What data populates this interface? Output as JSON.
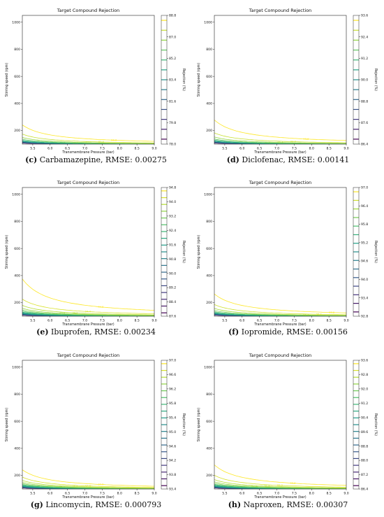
{
  "panel_title": "Target Compound Rejection",
  "xlabel": "Transmembrane Pressure (bar)",
  "ylabel": "Stirring speed (rpm)",
  "colorbar_label": "Rejection (%)",
  "x_ticks": [
    "5.5",
    "6.0",
    "6.5",
    "7.0",
    "7.5",
    "8.0",
    "8.5",
    "9.0"
  ],
  "y_ticks": [
    "200",
    "400",
    "600",
    "800",
    "1000"
  ],
  "colormap": "viridis",
  "colormap_stops": [
    "#440154",
    "#46327e",
    "#365c8d",
    "#277f8e",
    "#1fa187",
    "#4ac16d",
    "#a0da39",
    "#fde725"
  ],
  "chart_data": [
    {
      "type": "contour",
      "letter": "(c)",
      "caption": "Carbamazepine, RMSE: 0.00275",
      "title": "Target Compound Rejection",
      "xlabel": "Transmembrane Pressure (bar)",
      "ylabel": "Stirring speed (rpm)",
      "xlim": [
        5.2,
        9.0
      ],
      "ylim": [
        100,
        1050
      ],
      "colorbar_ticks": [
        78.0,
        79.8,
        81.6,
        83.4,
        85.2,
        87.0,
        88.8
      ],
      "level_range": [
        78.0,
        89.7
      ],
      "levels": [
        78.0,
        78.9,
        79.8,
        80.7,
        81.6,
        82.5,
        83.4,
        84.3,
        85.2,
        86.1,
        87.0,
        87.9,
        88.8
      ]
    },
    {
      "type": "contour",
      "letter": "(d)",
      "caption": "Diclofenac, RMSE: 0.00141",
      "title": "Target Compound Rejection",
      "xlabel": "Transmembrane Pressure (bar)",
      "ylabel": "Stirring speed (rpm)",
      "xlim": [
        5.2,
        9.0
      ],
      "ylim": [
        100,
        1050
      ],
      "colorbar_ticks": [
        86.4,
        87.6,
        88.8,
        90.0,
        91.2,
        92.4,
        93.6
      ],
      "level_range": [
        86.4,
        94.0
      ],
      "levels": [
        86.4,
        87.0,
        87.6,
        88.2,
        88.8,
        89.4,
        90.0,
        90.6,
        91.2,
        91.8,
        92.4,
        93.0,
        93.6
      ]
    },
    {
      "type": "contour",
      "letter": "(e)",
      "caption": "Ibuprofen, RMSE: 0.00234",
      "title": "Target Compound Rejection",
      "xlabel": "Transmembrane Pressure (bar)",
      "ylabel": "Stirring speed (rpm)",
      "xlim": [
        5.2,
        9.0
      ],
      "ylim": [
        100,
        1050
      ],
      "colorbar_ticks": [
        87.6,
        88.4,
        89.2,
        90.0,
        90.8,
        91.6,
        92.4,
        93.2,
        94.0,
        94.8
      ],
      "level_range": [
        87.6,
        95.0
      ],
      "levels": [
        87.6,
        88.0,
        88.4,
        88.8,
        89.2,
        89.6,
        90.0,
        90.4,
        90.8,
        91.2,
        91.6,
        92.0,
        92.4,
        92.8,
        93.2,
        93.6,
        94.0,
        94.4,
        94.8
      ]
    },
    {
      "type": "contour",
      "letter": "(f)",
      "caption": "Iopromide, RMSE: 0.00156",
      "title": "Target Compound Rejection",
      "xlabel": "Transmembrane Pressure (bar)",
      "ylabel": "Stirring speed (rpm)",
      "xlim": [
        5.2,
        9.0
      ],
      "ylim": [
        100,
        1050
      ],
      "colorbar_ticks": [
        92.8,
        93.4,
        94.0,
        94.6,
        95.2,
        95.8,
        96.4,
        97.0
      ],
      "level_range": [
        92.8,
        97.2
      ],
      "levels": [
        92.8,
        93.1,
        93.4,
        93.7,
        94.0,
        94.3,
        94.6,
        94.9,
        95.2,
        95.5,
        95.8,
        96.1,
        96.4,
        96.7,
        97.0
      ]
    },
    {
      "type": "contour",
      "letter": "(g)",
      "caption": "Lincomycin, RMSE: 0.000793",
      "title": "Target Compound Rejection",
      "xlabel": "Transmembrane Pressure (bar)",
      "ylabel": "Stirring speed (rpm)",
      "xlim": [
        5.2,
        9.0
      ],
      "ylim": [
        100,
        1050
      ],
      "colorbar_ticks": [
        93.4,
        93.8,
        94.2,
        94.6,
        95.0,
        95.4,
        95.8,
        96.2,
        96.6,
        97.0
      ],
      "level_range": [
        93.4,
        97.2
      ],
      "levels": [
        93.4,
        93.6,
        93.8,
        94.0,
        94.2,
        94.4,
        94.6,
        94.8,
        95.0,
        95.2,
        95.4,
        95.6,
        95.8,
        96.0,
        96.2,
        96.4,
        96.6,
        96.8,
        97.0
      ]
    },
    {
      "type": "contour",
      "letter": "(h)",
      "caption": "Naproxen, RMSE: 0.00307",
      "title": "Target Compound Rejection",
      "xlabel": "Transmembrane Pressure (bar)",
      "ylabel": "Stirring speed (rpm)",
      "xlim": [
        5.2,
        9.0
      ],
      "ylim": [
        100,
        1050
      ],
      "colorbar_ticks": [
        86.4,
        87.2,
        88.0,
        88.8,
        89.6,
        90.4,
        91.2,
        92.0,
        92.8,
        93.6
      ],
      "level_range": [
        86.4,
        94.0
      ],
      "levels": [
        86.4,
        86.8,
        87.2,
        87.6,
        88.0,
        88.4,
        88.8,
        89.2,
        89.6,
        90.0,
        90.4,
        90.8,
        91.2,
        91.6,
        92.0,
        92.4,
        92.8,
        93.2,
        93.6
      ]
    }
  ]
}
